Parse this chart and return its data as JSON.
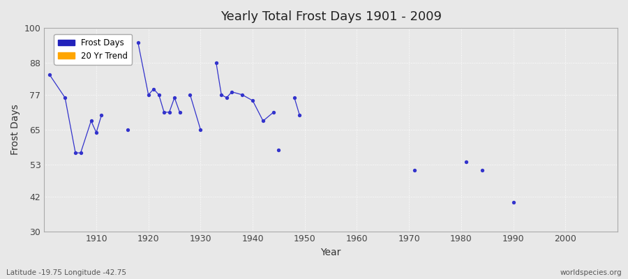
{
  "title": "Yearly Total Frost Days 1901 - 2009",
  "xlabel": "Year",
  "ylabel": "Frost Days",
  "subtitle": "Latitude -19.75 Longitude -42.75",
  "watermark": "worldspecies.org",
  "xlim": [
    1900,
    2010
  ],
  "ylim": [
    30,
    100
  ],
  "yticks": [
    30,
    42,
    53,
    65,
    77,
    88,
    100
  ],
  "xticks": [
    1910,
    1920,
    1930,
    1940,
    1950,
    1960,
    1970,
    1980,
    1990,
    2000
  ],
  "bg_color": "#e8e8e8",
  "plot_bg_color": "#e8e8e8",
  "grid_color": "#ffffff",
  "line_color": "#3333cc",
  "marker_color": "#3333cc",
  "legend_colors": [
    "#2222bb",
    "#ffa500"
  ],
  "legend_entries": [
    "Frost Days",
    "20 Yr Trend"
  ],
  "segments": [
    [
      [
        1901,
        84
      ],
      [
        1904,
        76
      ],
      [
        1906,
        57
      ],
      [
        1907,
        57
      ],
      [
        1909,
        68
      ],
      [
        1910,
        64
      ],
      [
        1911,
        70
      ]
    ],
    [
      [
        1916,
        65
      ]
    ],
    [
      [
        1918,
        95
      ],
      [
        1920,
        77
      ],
      [
        1921,
        79
      ],
      [
        1922,
        77
      ],
      [
        1923,
        71
      ],
      [
        1924,
        71
      ],
      [
        1925,
        76
      ],
      [
        1926,
        71
      ]
    ],
    [
      [
        1928,
        77
      ],
      [
        1930,
        65
      ]
    ],
    [
      [
        1933,
        88
      ],
      [
        1934,
        77
      ],
      [
        1935,
        76
      ],
      [
        1936,
        78
      ],
      [
        1938,
        77
      ],
      [
        1940,
        75
      ],
      [
        1942,
        68
      ],
      [
        1944,
        71
      ]
    ],
    [
      [
        1945,
        58
      ]
    ],
    [
      [
        1948,
        76
      ],
      [
        1949,
        70
      ]
    ],
    [
      [
        1971,
        51
      ]
    ],
    [
      [
        1981,
        54
      ]
    ],
    [
      [
        1984,
        51
      ]
    ],
    [
      [
        1990,
        40
      ]
    ]
  ]
}
